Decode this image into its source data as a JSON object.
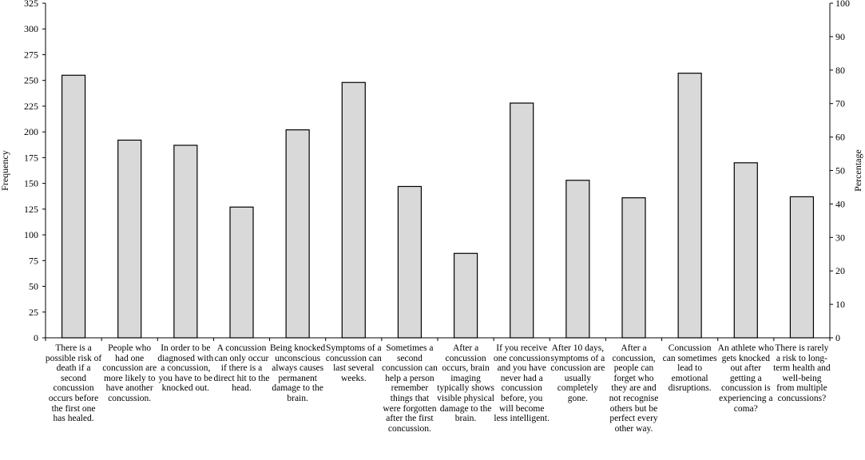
{
  "chart_data": {
    "type": "bar",
    "title": "",
    "xlabel": "",
    "ylabel": "Frequency",
    "y2label": "Percentage",
    "ylim": [
      0,
      325
    ],
    "y2lim": [
      0,
      100
    ],
    "yticks": [
      "0",
      "25",
      "50",
      "75",
      "100",
      "125",
      "150",
      "175",
      "200",
      "225",
      "250",
      "275",
      "300",
      "325"
    ],
    "y2ticks": [
      "0",
      "10",
      "20",
      "30",
      "40",
      "50",
      "60",
      "70",
      "80",
      "90",
      "100"
    ],
    "bar_color": "#d9d9d9",
    "categories": [
      "There is a possible risk of death if a second concussion occurs before the first one has healed.",
      "People who had one concussion are more likely to have another concussion.",
      "In order to be diagnosed with a concussion, you have to be knocked out.",
      "A concussion can only occur if there is a direct hit to the head.",
      "Being knocked unconscious always causes permanent damage to the brain.",
      "Symptoms of a concussion can last several weeks.",
      "Sometimes a second concussion can help a person remember things that were forgotten after the first concussion.",
      "After a concussion occurs, brain imaging typically shows visible physical damage to the brain.",
      "If you receive one concussion and you have never had a concussion before, you will become less intelligent.",
      "After 10 days, symptoms of a concussion are usually completely gone.",
      "After a concussion, people can forget who they are and not recognise others but be perfect every other way.",
      "Concussion can sometimes lead to emotional disruptions.",
      "An athlete who gets knocked out after getting a concussion is experiencing a coma?",
      "There is rarely a risk to long-term health and well-being from multiple concussions?"
    ],
    "values": [
      255,
      192,
      187,
      127,
      202,
      248,
      147,
      82,
      228,
      153,
      136,
      257,
      170,
      137
    ]
  }
}
